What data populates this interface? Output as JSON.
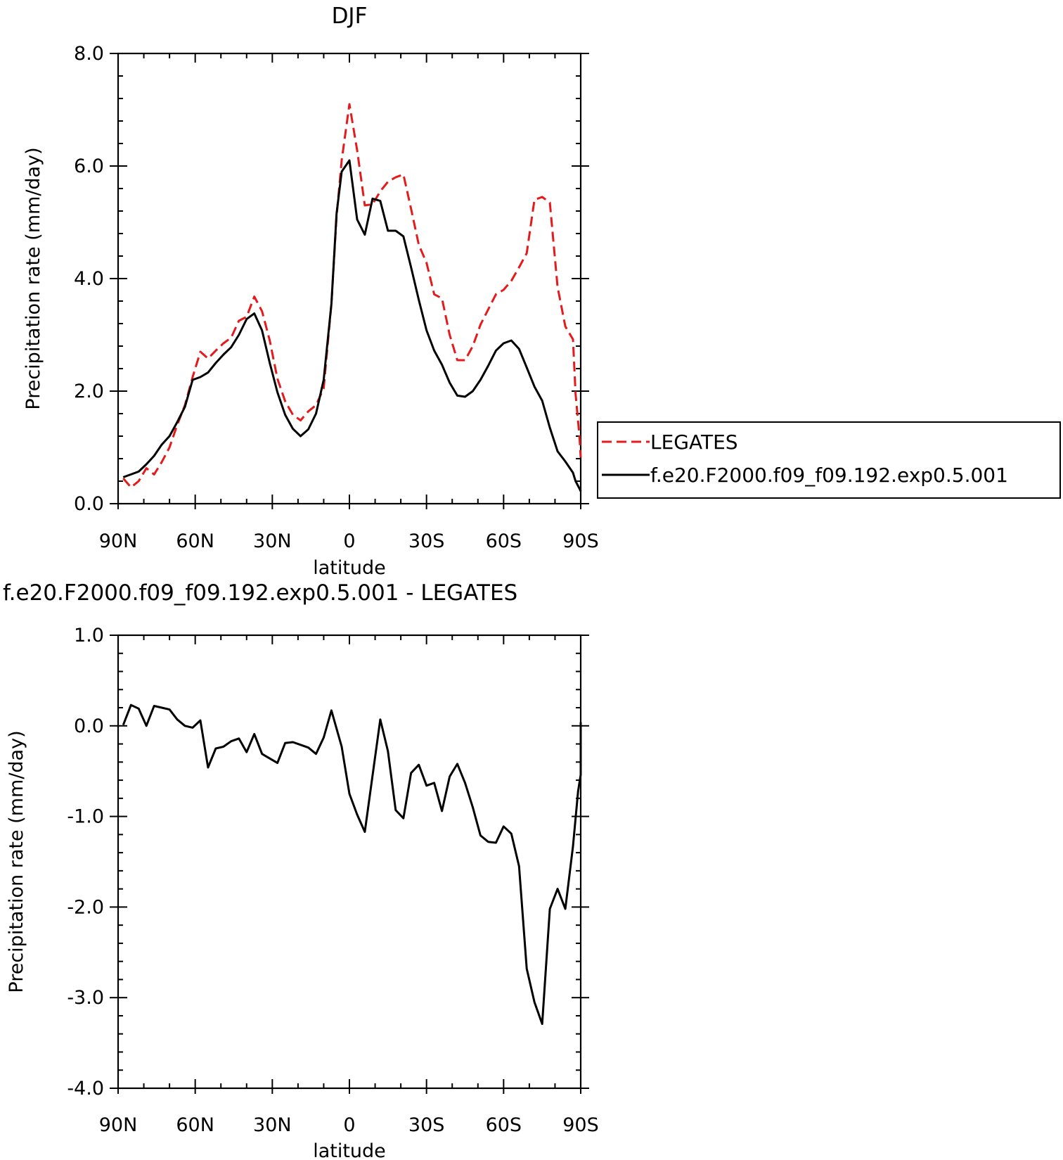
{
  "chart_data": [
    {
      "type": "line",
      "title": "DJF",
      "xlabel": "latitude",
      "ylabel": "Precipitation rate (mm/day)",
      "xlim": [
        90,
        -90
      ],
      "ylim": [
        0,
        8
      ],
      "xticks": [
        {
          "value": 90,
          "label": "90N"
        },
        {
          "value": 60,
          "label": "60N"
        },
        {
          "value": 30,
          "label": "30N"
        },
        {
          "value": 0,
          "label": "0"
        },
        {
          "value": -30,
          "label": "30S"
        },
        {
          "value": -60,
          "label": "60S"
        },
        {
          "value": -90,
          "label": "90S"
        }
      ],
      "yticks": [
        {
          "value": 0,
          "label": "0.0"
        },
        {
          "value": 2,
          "label": "2.0"
        },
        {
          "value": 4,
          "label": "4.0"
        },
        {
          "value": 6,
          "label": "6.0"
        },
        {
          "value": 8,
          "label": "8.0"
        }
      ],
      "legend_position": "right",
      "series": [
        {
          "name": "LEGATES",
          "color": "#e41a1c",
          "style": "dashed",
          "points": [
            [
              88,
              0.45
            ],
            [
              85,
              0.29
            ],
            [
              82,
              0.4
            ],
            [
              79,
              0.63
            ],
            [
              76,
              0.52
            ],
            [
              73,
              0.74
            ],
            [
              70,
              1.0
            ],
            [
              67,
              1.4
            ],
            [
              64,
              1.75
            ],
            [
              61,
              2.25
            ],
            [
              58,
              2.7
            ],
            [
              55,
              2.58
            ],
            [
              52,
              2.72
            ],
            [
              49,
              2.85
            ],
            [
              46,
              2.95
            ],
            [
              43,
              3.25
            ],
            [
              40,
              3.32
            ],
            [
              37,
              3.68
            ],
            [
              34,
              3.42
            ],
            [
              31,
              2.9
            ],
            [
              28,
              2.22
            ],
            [
              25,
              1.82
            ],
            [
              22,
              1.58
            ],
            [
              19,
              1.48
            ],
            [
              16,
              1.64
            ],
            [
              13,
              1.75
            ],
            [
              10,
              2.05
            ],
            [
              7,
              3.55
            ],
            [
              5,
              5.1
            ],
            [
              3,
              6.1
            ],
            [
              0,
              7.1
            ],
            [
              -3,
              6.28
            ],
            [
              -6,
              5.3
            ],
            [
              -9,
              5.32
            ],
            [
              -12,
              5.55
            ],
            [
              -15,
              5.72
            ],
            [
              -18,
              5.8
            ],
            [
              -21,
              5.85
            ],
            [
              -24,
              5.24
            ],
            [
              -27,
              4.6
            ],
            [
              -30,
              4.28
            ],
            [
              -33,
              3.72
            ],
            [
              -36,
              3.65
            ],
            [
              -39,
              3.0
            ],
            [
              -42,
              2.55
            ],
            [
              -45,
              2.55
            ],
            [
              -48,
              2.8
            ],
            [
              -51,
              3.18
            ],
            [
              -54,
              3.45
            ],
            [
              -57,
              3.72
            ],
            [
              -60,
              3.8
            ],
            [
              -63,
              3.96
            ],
            [
              -66,
              4.2
            ],
            [
              -69,
              4.45
            ],
            [
              -72,
              5.4
            ],
            [
              -75,
              5.45
            ],
            [
              -78,
              5.35
            ],
            [
              -81,
              3.85
            ],
            [
              -84,
              3.15
            ],
            [
              -87,
              2.92
            ],
            [
              -88,
              1.95
            ],
            [
              -89.5,
              1.2
            ],
            [
              -90,
              0.82
            ]
          ]
        },
        {
          "name": "f.e20.F2000.f09_f09.192.exp0.5.001",
          "color": "#000000",
          "style": "solid",
          "points": [
            [
              88,
              0.47
            ],
            [
              85,
              0.52
            ],
            [
              82,
              0.57
            ],
            [
              79,
              0.7
            ],
            [
              76,
              0.85
            ],
            [
              73,
              1.05
            ],
            [
              70,
              1.2
            ],
            [
              67,
              1.45
            ],
            [
              64,
              1.72
            ],
            [
              61,
              2.2
            ],
            [
              58,
              2.25
            ],
            [
              55,
              2.33
            ],
            [
              52,
              2.5
            ],
            [
              49,
              2.65
            ],
            [
              46,
              2.78
            ],
            [
              43,
              3.0
            ],
            [
              40,
              3.28
            ],
            [
              37,
              3.38
            ],
            [
              34,
              3.08
            ],
            [
              31,
              2.5
            ],
            [
              28,
              1.98
            ],
            [
              25,
              1.58
            ],
            [
              22,
              1.33
            ],
            [
              19,
              1.2
            ],
            [
              16,
              1.32
            ],
            [
              13,
              1.6
            ],
            [
              10,
              2.2
            ],
            [
              7,
              3.55
            ],
            [
              5,
              5.15
            ],
            [
              3,
              5.9
            ],
            [
              0,
              6.1
            ],
            [
              -3,
              5.05
            ],
            [
              -6,
              4.78
            ],
            [
              -9,
              5.42
            ],
            [
              -12,
              5.38
            ],
            [
              -15,
              4.85
            ],
            [
              -18,
              4.85
            ],
            [
              -21,
              4.75
            ],
            [
              -24,
              4.2
            ],
            [
              -27,
              3.62
            ],
            [
              -30,
              3.08
            ],
            [
              -33,
              2.72
            ],
            [
              -36,
              2.47
            ],
            [
              -39,
              2.15
            ],
            [
              -42,
              1.92
            ],
            [
              -45,
              1.9
            ],
            [
              -48,
              2.0
            ],
            [
              -51,
              2.2
            ],
            [
              -54,
              2.45
            ],
            [
              -57,
              2.72
            ],
            [
              -60,
              2.85
            ],
            [
              -63,
              2.9
            ],
            [
              -66,
              2.75
            ],
            [
              -69,
              2.42
            ],
            [
              -72,
              2.08
            ],
            [
              -75,
              1.83
            ],
            [
              -78,
              1.35
            ],
            [
              -81,
              0.93
            ],
            [
              -84,
              0.75
            ],
            [
              -87,
              0.55
            ],
            [
              -88,
              0.4
            ],
            [
              -89.5,
              0.27
            ],
            [
              -90,
              0.22
            ]
          ]
        }
      ],
      "legend_entries": [
        {
          "label": "LEGATES",
          "color": "#e41a1c",
          "style": "dashed"
        },
        {
          "label": "f.e20.F2000.f09_f09.192.exp0.5.001",
          "color": "#000000",
          "style": "solid"
        }
      ]
    },
    {
      "type": "line",
      "title": "f.e20.F2000.f09_f09.192.exp0.5.001 - LEGATES",
      "xlabel": "latitude",
      "ylabel": "Precipitation rate (mm/day)",
      "xlim": [
        90,
        -90
      ],
      "ylim": [
        -4,
        1
      ],
      "xticks": [
        {
          "value": 90,
          "label": "90N"
        },
        {
          "value": 60,
          "label": "60N"
        },
        {
          "value": 30,
          "label": "30N"
        },
        {
          "value": 0,
          "label": "0"
        },
        {
          "value": -30,
          "label": "30S"
        },
        {
          "value": -60,
          "label": "60S"
        },
        {
          "value": -90,
          "label": "90S"
        }
      ],
      "yticks": [
        {
          "value": 1,
          "label": "1.0"
        },
        {
          "value": 0,
          "label": "0.0"
        },
        {
          "value": -1,
          "label": "-1.0"
        },
        {
          "value": -2,
          "label": "-2.0"
        },
        {
          "value": -3,
          "label": "-3.0"
        },
        {
          "value": -4,
          "label": "-4.0"
        }
      ],
      "series": [
        {
          "color": "#000000",
          "style": "solid",
          "points": [
            [
              88,
              0.01
            ],
            [
              85,
              0.23
            ],
            [
              82,
              0.19
            ],
            [
              79,
              0.0
            ],
            [
              76,
              0.22
            ],
            [
              73,
              0.2
            ],
            [
              70,
              0.18
            ],
            [
              67,
              0.07
            ],
            [
              64,
              0.0
            ],
            [
              61,
              -0.02
            ],
            [
              58,
              0.06
            ],
            [
              55,
              -0.46
            ],
            [
              52,
              -0.25
            ],
            [
              49,
              -0.23
            ],
            [
              46,
              -0.17
            ],
            [
              43,
              -0.14
            ],
            [
              40,
              -0.29
            ],
            [
              37,
              -0.09
            ],
            [
              34,
              -0.31
            ],
            [
              31,
              -0.36
            ],
            [
              28,
              -0.41
            ],
            [
              25,
              -0.19
            ],
            [
              22,
              -0.18
            ],
            [
              19,
              -0.21
            ],
            [
              16,
              -0.24
            ],
            [
              13,
              -0.31
            ],
            [
              10,
              -0.13
            ],
            [
              7,
              0.17
            ],
            [
              5,
              -0.03
            ],
            [
              3,
              -0.23
            ],
            [
              0,
              -0.75
            ],
            [
              -3,
              -0.98
            ],
            [
              -6,
              -1.17
            ],
            [
              -9,
              -0.55
            ],
            [
              -12,
              0.07
            ],
            [
              -15,
              -0.28
            ],
            [
              -18,
              -0.93
            ],
            [
              -21,
              -1.02
            ],
            [
              -24,
              -0.52
            ],
            [
              -27,
              -0.43
            ],
            [
              -30,
              -0.66
            ],
            [
              -33,
              -0.63
            ],
            [
              -36,
              -0.94
            ],
            [
              -39,
              -0.56
            ],
            [
              -42,
              -0.42
            ],
            [
              -45,
              -0.63
            ],
            [
              -48,
              -0.9
            ],
            [
              -51,
              -1.21
            ],
            [
              -54,
              -1.28
            ],
            [
              -57,
              -1.29
            ],
            [
              -60,
              -1.11
            ],
            [
              -63,
              -1.19
            ],
            [
              -66,
              -1.55
            ],
            [
              -69,
              -2.68
            ],
            [
              -72,
              -3.05
            ],
            [
              -75,
              -3.29
            ],
            [
              -78,
              -2.02
            ],
            [
              -81,
              -1.8
            ],
            [
              -84,
              -2.02
            ],
            [
              -87,
              -1.33
            ],
            [
              -89,
              -0.72
            ],
            [
              -90,
              -0.54
            ],
            [
              -90,
              -0.06
            ],
            [
              -90,
              0.04
            ]
          ]
        }
      ]
    }
  ]
}
